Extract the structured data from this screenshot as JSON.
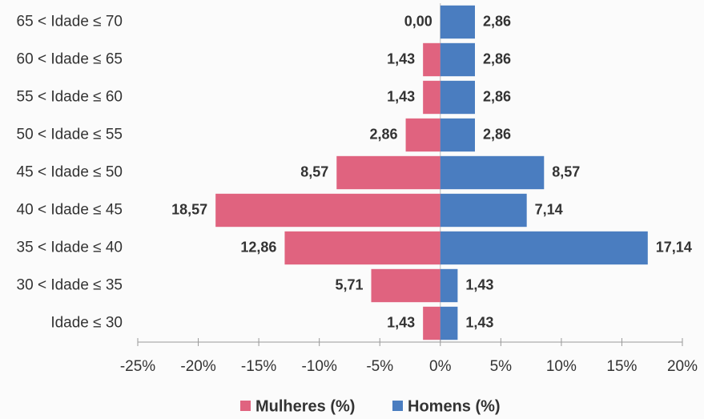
{
  "chart_data": {
    "type": "bar",
    "orientation": "horizontal",
    "categories": [
      "65 < Idade ≤ 70",
      "60 < Idade ≤ 65",
      "55 < Idade ≤ 60",
      "50 < Idade ≤ 55",
      "45 < Idade ≤ 50",
      "40 < Idade ≤ 45",
      "35 < Idade ≤ 40",
      "30 < Idade ≤ 35",
      "Idade ≤ 30"
    ],
    "series": [
      {
        "name": "Mulheres (%)",
        "color": "#e0637f",
        "values": [
          0,
          -1.43,
          -1.43,
          -2.86,
          -8.57,
          -18.57,
          -12.86,
          -5.71,
          -1.43
        ],
        "value_labels": [
          "0,00",
          "1,43",
          "1,43",
          "2,86",
          "8,57",
          "18,57",
          "12,86",
          "5,71",
          "1,43"
        ]
      },
      {
        "name": "Homens (%)",
        "color": "#4a7dc0",
        "values": [
          2.86,
          2.86,
          2.86,
          2.86,
          8.57,
          7.14,
          17.14,
          1.43,
          1.43
        ],
        "value_labels": [
          "2,86",
          "2,86",
          "2,86",
          "2,86",
          "8,57",
          "7,14",
          "17,14",
          "1,43",
          "1,43"
        ]
      }
    ],
    "xlim": [
      -25,
      20
    ],
    "xticks": [
      {
        "value": -25,
        "label": "-25%"
      },
      {
        "value": -20,
        "label": "-20%"
      },
      {
        "value": -15,
        "label": "-15%"
      },
      {
        "value": -10,
        "label": "-10%"
      },
      {
        "value": -5,
        "label": "-5%"
      },
      {
        "value": 0,
        "label": "0%"
      },
      {
        "value": 5,
        "label": "5%"
      },
      {
        "value": 10,
        "label": "10%"
      },
      {
        "value": 15,
        "label": "15%"
      },
      {
        "value": 20,
        "label": "20%"
      }
    ],
    "legend": "bottom"
  }
}
